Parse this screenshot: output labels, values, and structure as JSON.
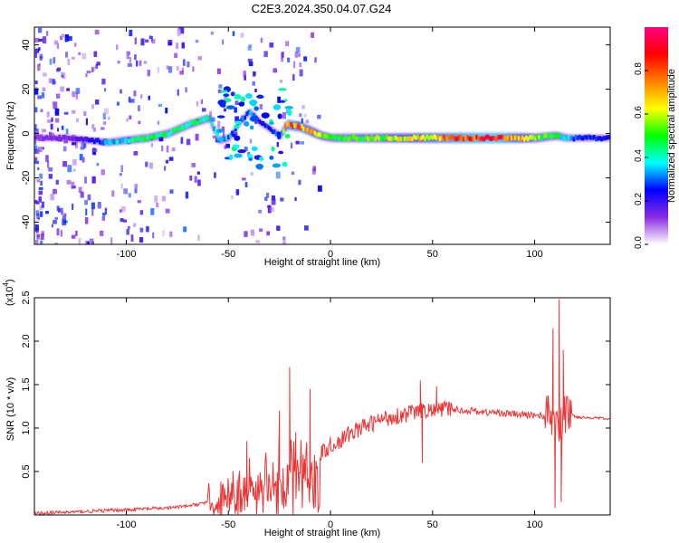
{
  "title": "C2E3.2024.350.04.07.G24",
  "chart_data": [
    {
      "type": "heatmap",
      "xlabel": "Height of straight line (km)",
      "ylabel": "Frequency (Hz)",
      "xlim": [
        -145,
        137
      ],
      "ylim": [
        -50,
        48
      ],
      "xticks": [
        -100,
        -50,
        0,
        50,
        100
      ],
      "yticks": [
        -40,
        -20,
        0,
        20,
        40
      ],
      "colorbar": {
        "label": "Normalized spectral amplitude",
        "range": [
          0,
          1
        ],
        "ticks": [
          "0.0",
          "0.2",
          "0.4",
          "0.6",
          "0.8"
        ],
        "tick_values": [
          0.0,
          0.2,
          0.4,
          0.6,
          0.8
        ],
        "colors": [
          "#ffffff",
          "#8a2be2",
          "#0000ff",
          "#00ffff",
          "#00ff00",
          "#ffff00",
          "#ff8000",
          "#ff0000",
          "#ff0080"
        ]
      },
      "ridge": {
        "x": [
          -145,
          -130,
          -120,
          -110,
          -100,
          -90,
          -80,
          -70,
          -60,
          -55,
          -50,
          -45,
          -40,
          -35,
          -30,
          -25,
          -22,
          -15,
          -10,
          -5,
          0,
          20,
          40,
          60,
          80,
          100,
          110,
          115,
          120,
          137
        ],
        "y": [
          -2,
          -2,
          -3,
          -4,
          -3,
          -2,
          0,
          4,
          7,
          -3,
          -2,
          5,
          10,
          5,
          2,
          -1,
          4,
          3,
          1,
          -1,
          -2,
          -2,
          -2,
          -2,
          -2,
          -2,
          -1,
          -2,
          -2,
          -2
        ],
        "amplitude": [
          0.15,
          0.15,
          0.2,
          0.35,
          0.45,
          0.5,
          0.5,
          0.5,
          0.45,
          0.4,
          0.35,
          0.3,
          0.35,
          0.3,
          0.3,
          0.3,
          0.85,
          0.8,
          0.75,
          0.6,
          0.5,
          0.6,
          0.7,
          0.85,
          0.95,
          0.6,
          0.5,
          0.4,
          0.3,
          0.25
        ]
      }
    },
    {
      "type": "line",
      "xlabel": "Height of straight line (km)",
      "ylabel": "SNR (10 * v/v)",
      "y_multiplier": "(x10",
      "y_multiplier_exp": "4",
      "y_multiplier_close": ")",
      "xlim": [
        -145,
        137
      ],
      "ylim": [
        0,
        2.5
      ],
      "xticks": [
        -100,
        -50,
        0,
        50,
        100
      ],
      "yticks": [
        0.5,
        1.0,
        1.5,
        2.0,
        2.5
      ],
      "ytick_labels": [
        "0.5",
        "1.0",
        "1.5",
        "2.0",
        "2.5"
      ],
      "color": "#ee3333",
      "series": [
        {
          "x": [
            -145,
            -130,
            -120,
            -110,
            -100,
            -90,
            -80,
            -70,
            -60,
            -55,
            -50,
            -45,
            -40,
            -35,
            -30,
            -25,
            -20,
            -15,
            -10,
            -5,
            0,
            5,
            10,
            15,
            20,
            25,
            30,
            35,
            40,
            45,
            50,
            55,
            60,
            65,
            70,
            75,
            80,
            85,
            90,
            95,
            100,
            105,
            110,
            112,
            114,
            116,
            120,
            125,
            130,
            137
          ],
          "y": [
            0.02,
            0.03,
            0.04,
            0.05,
            0.06,
            0.07,
            0.08,
            0.1,
            0.15,
            0.2,
            0.25,
            0.32,
            0.38,
            0.43,
            0.48,
            0.52,
            0.55,
            0.6,
            0.65,
            0.7,
            0.8,
            0.85,
            0.95,
            1.0,
            1.05,
            1.1,
            1.13,
            1.15,
            1.18,
            1.2,
            1.2,
            1.22,
            1.22,
            1.2,
            1.2,
            1.18,
            1.18,
            1.17,
            1.16,
            1.15,
            1.15,
            1.14,
            1.13,
            0.9,
            1.1,
            1.2,
            1.13,
            1.12,
            1.12,
            1.1
          ],
          "spikes": [
            {
              "x": -41,
              "y": 0.85
            },
            {
              "x": -25,
              "y": 1.2
            },
            {
              "x": -20,
              "y": 1.7
            },
            {
              "x": -17,
              "y": 0.95
            },
            {
              "x": -10,
              "y": 1.45
            },
            {
              "x": 44,
              "y": 1.55
            },
            {
              "x": 45,
              "y": 0.6
            },
            {
              "x": 52,
              "y": 1.48
            },
            {
              "x": 109,
              "y": 2.15
            },
            {
              "x": 110,
              "y": 0.08
            },
            {
              "x": 112,
              "y": 2.48
            },
            {
              "x": 113,
              "y": 0.15
            },
            {
              "x": 114,
              "y": 1.9
            }
          ]
        }
      ]
    }
  ]
}
